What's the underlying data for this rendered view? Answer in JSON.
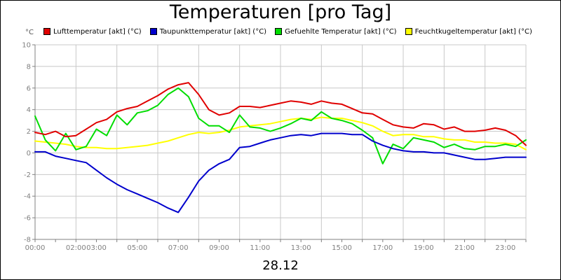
{
  "chart_data": {
    "type": "line",
    "title": "Temperaturen [pro Tag]",
    "y_unit": "°C",
    "ylim": [
      -8,
      10
    ],
    "y_ticks": [
      10,
      8,
      6,
      4,
      2,
      0,
      -2,
      -4,
      -6,
      -8
    ],
    "xlim": [
      0,
      24
    ],
    "x_ticks": [
      {
        "h": 0,
        "label": "00:00"
      },
      {
        "h": 2,
        "label": "02:00"
      },
      {
        "h": 3,
        "label": "03:00"
      },
      {
        "h": 5,
        "label": "05:00"
      },
      {
        "h": 7,
        "label": "07:00"
      },
      {
        "h": 9,
        "label": "09:00"
      },
      {
        "h": 11,
        "label": "11:00"
      },
      {
        "h": 13,
        "label": "13:00"
      },
      {
        "h": 15,
        "label": "15:00"
      },
      {
        "h": 17,
        "label": "17:00"
      },
      {
        "h": 19,
        "label": "19:00"
      },
      {
        "h": 21,
        "label": "21:00"
      },
      {
        "h": 23,
        "label": "23:00"
      }
    ],
    "x_gridlines": [
      0,
      2,
      4,
      6,
      8,
      10,
      12,
      14,
      16,
      18,
      20,
      22
    ],
    "grid": true,
    "legend_position": "top",
    "date_label": "28.12",
    "series": [
      {
        "name": "Lufttemperatur [akt] (°C)",
        "color": "#e00000",
        "x": [
          0,
          0.5,
          1,
          1.5,
          2,
          2.5,
          3,
          3.5,
          4,
          4.5,
          5,
          5.5,
          6,
          6.5,
          7,
          7.5,
          8,
          8.5,
          9,
          9.5,
          10,
          10.5,
          11,
          11.5,
          12,
          12.5,
          13,
          13.5,
          14,
          14.5,
          15,
          15.5,
          16,
          16.5,
          17,
          17.5,
          18,
          18.5,
          19,
          19.5,
          20,
          20.5,
          21,
          21.5,
          22,
          22.5,
          23,
          23.5,
          24
        ],
        "values": [
          1.9,
          1.7,
          2.0,
          1.5,
          1.6,
          2.2,
          2.8,
          3.1,
          3.8,
          4.1,
          4.3,
          4.8,
          5.3,
          5.9,
          6.3,
          6.5,
          5.4,
          4.0,
          3.5,
          3.7,
          4.3,
          4.3,
          4.2,
          4.4,
          4.6,
          4.8,
          4.7,
          4.5,
          4.8,
          4.6,
          4.5,
          4.1,
          3.7,
          3.6,
          3.1,
          2.6,
          2.4,
          2.3,
          2.7,
          2.6,
          2.2,
          2.4,
          2.0,
          2.0,
          2.1,
          2.3,
          2.1,
          1.6,
          0.7
        ]
      },
      {
        "name": "Taupunkttemperatur [akt] (°C)",
        "color": "#0000cc",
        "x": [
          0,
          0.5,
          1,
          1.5,
          2,
          2.5,
          3,
          3.5,
          4,
          4.5,
          5,
          5.5,
          6,
          6.5,
          7,
          7.5,
          8,
          8.5,
          9,
          9.5,
          10,
          10.5,
          11,
          11.5,
          12,
          12.5,
          13,
          13.5,
          14,
          14.5,
          15,
          15.5,
          16,
          16.5,
          17,
          17.5,
          18,
          18.5,
          19,
          19.5,
          20,
          20.5,
          21,
          21.5,
          22,
          22.5,
          23,
          23.5,
          24
        ],
        "values": [
          0.1,
          0.1,
          -0.3,
          -0.5,
          -0.7,
          -0.9,
          -1.6,
          -2.3,
          -2.9,
          -3.4,
          -3.8,
          -4.2,
          -4.6,
          -5.1,
          -5.5,
          -4.1,
          -2.6,
          -1.6,
          -1.0,
          -0.6,
          0.5,
          0.6,
          0.9,
          1.2,
          1.4,
          1.6,
          1.7,
          1.6,
          1.8,
          1.8,
          1.8,
          1.7,
          1.7,
          1.1,
          0.7,
          0.4,
          0.2,
          0.1,
          0.1,
          0.0,
          0.0,
          -0.2,
          -0.4,
          -0.6,
          -0.6,
          -0.5,
          -0.4,
          -0.4,
          -0.4
        ]
      },
      {
        "name": "Gefuehlte Temperatur [akt] (°C)",
        "color": "#00dd00",
        "x": [
          0,
          0.5,
          1,
          1.5,
          2,
          2.5,
          3,
          3.5,
          4,
          4.5,
          5,
          5.5,
          6,
          6.5,
          7,
          7.5,
          8,
          8.5,
          9,
          9.5,
          10,
          10.5,
          11,
          11.5,
          12,
          12.5,
          13,
          13.5,
          14,
          14.5,
          15,
          15.5,
          16,
          16.5,
          17,
          17.5,
          18,
          18.5,
          19,
          19.5,
          20,
          20.5,
          21,
          21.5,
          22,
          22.5,
          23,
          23.5,
          24
        ],
        "values": [
          3.4,
          1.2,
          0.2,
          1.8,
          0.3,
          0.6,
          2.2,
          1.6,
          3.5,
          2.6,
          3.7,
          3.9,
          4.4,
          5.4,
          6.0,
          5.2,
          3.2,
          2.5,
          2.5,
          1.9,
          3.5,
          2.4,
          2.3,
          2.0,
          2.3,
          2.7,
          3.2,
          3.0,
          3.8,
          3.2,
          3.0,
          2.7,
          2.1,
          1.4,
          -1.0,
          0.8,
          0.4,
          1.4,
          1.2,
          1.0,
          0.5,
          0.8,
          0.4,
          0.3,
          0.6,
          0.6,
          0.8,
          0.6,
          1.2
        ]
      },
      {
        "name": "Feuchtkugeltemperatur [akt] (°C)",
        "color": "#ffff00",
        "x": [
          0,
          0.5,
          1,
          1.5,
          2,
          2.5,
          3,
          3.5,
          4,
          4.5,
          5,
          5.5,
          6,
          6.5,
          7,
          7.5,
          8,
          8.5,
          9,
          9.5,
          10,
          10.5,
          11,
          11.5,
          12,
          12.5,
          13,
          13.5,
          14,
          14.5,
          15,
          15.5,
          16,
          16.5,
          17,
          17.5,
          18,
          18.5,
          19,
          19.5,
          20,
          20.5,
          21,
          21.5,
          22,
          22.5,
          23,
          23.5,
          24
        ],
        "values": [
          1.1,
          1.0,
          0.9,
          0.8,
          0.6,
          0.5,
          0.5,
          0.4,
          0.4,
          0.5,
          0.6,
          0.7,
          0.9,
          1.1,
          1.4,
          1.7,
          1.9,
          1.8,
          1.9,
          2.1,
          2.4,
          2.5,
          2.6,
          2.7,
          2.9,
          3.1,
          3.2,
          3.1,
          3.3,
          3.2,
          3.2,
          3.0,
          2.8,
          2.5,
          2.0,
          1.6,
          1.7,
          1.7,
          1.5,
          1.5,
          1.3,
          1.2,
          1.2,
          1.0,
          1.0,
          0.9,
          0.9,
          0.8,
          0.3
        ]
      }
    ]
  }
}
